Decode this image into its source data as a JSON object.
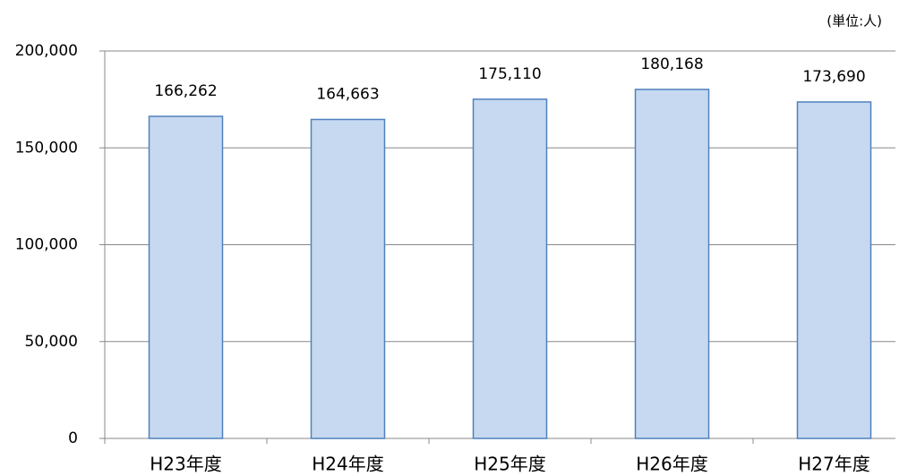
{
  "chart_data": {
    "type": "bar",
    "annotation": "(単位:人)",
    "categories": [
      "H23年度",
      "H24年度",
      "H25年度",
      "H26年度",
      "H27年度"
    ],
    "values": [
      166262,
      164663,
      175110,
      180168,
      173690
    ],
    "value_labels": [
      "166,262",
      "164,663",
      "175,110",
      "180,168",
      "173,690"
    ],
    "color": "#c6d9f1",
    "edge_color": "#4f81bd",
    "ylim": [
      0,
      200000
    ],
    "yticks": [
      0,
      {
        "value": 50000,
        "label": "50,000"
      },
      {
        "value": 100000,
        "label": "100,000"
      },
      {
        "value": 150000,
        "label": "150,000"
      },
      {
        "value": 200000,
        "label": "200,000"
      }
    ],
    "grid": true
  }
}
